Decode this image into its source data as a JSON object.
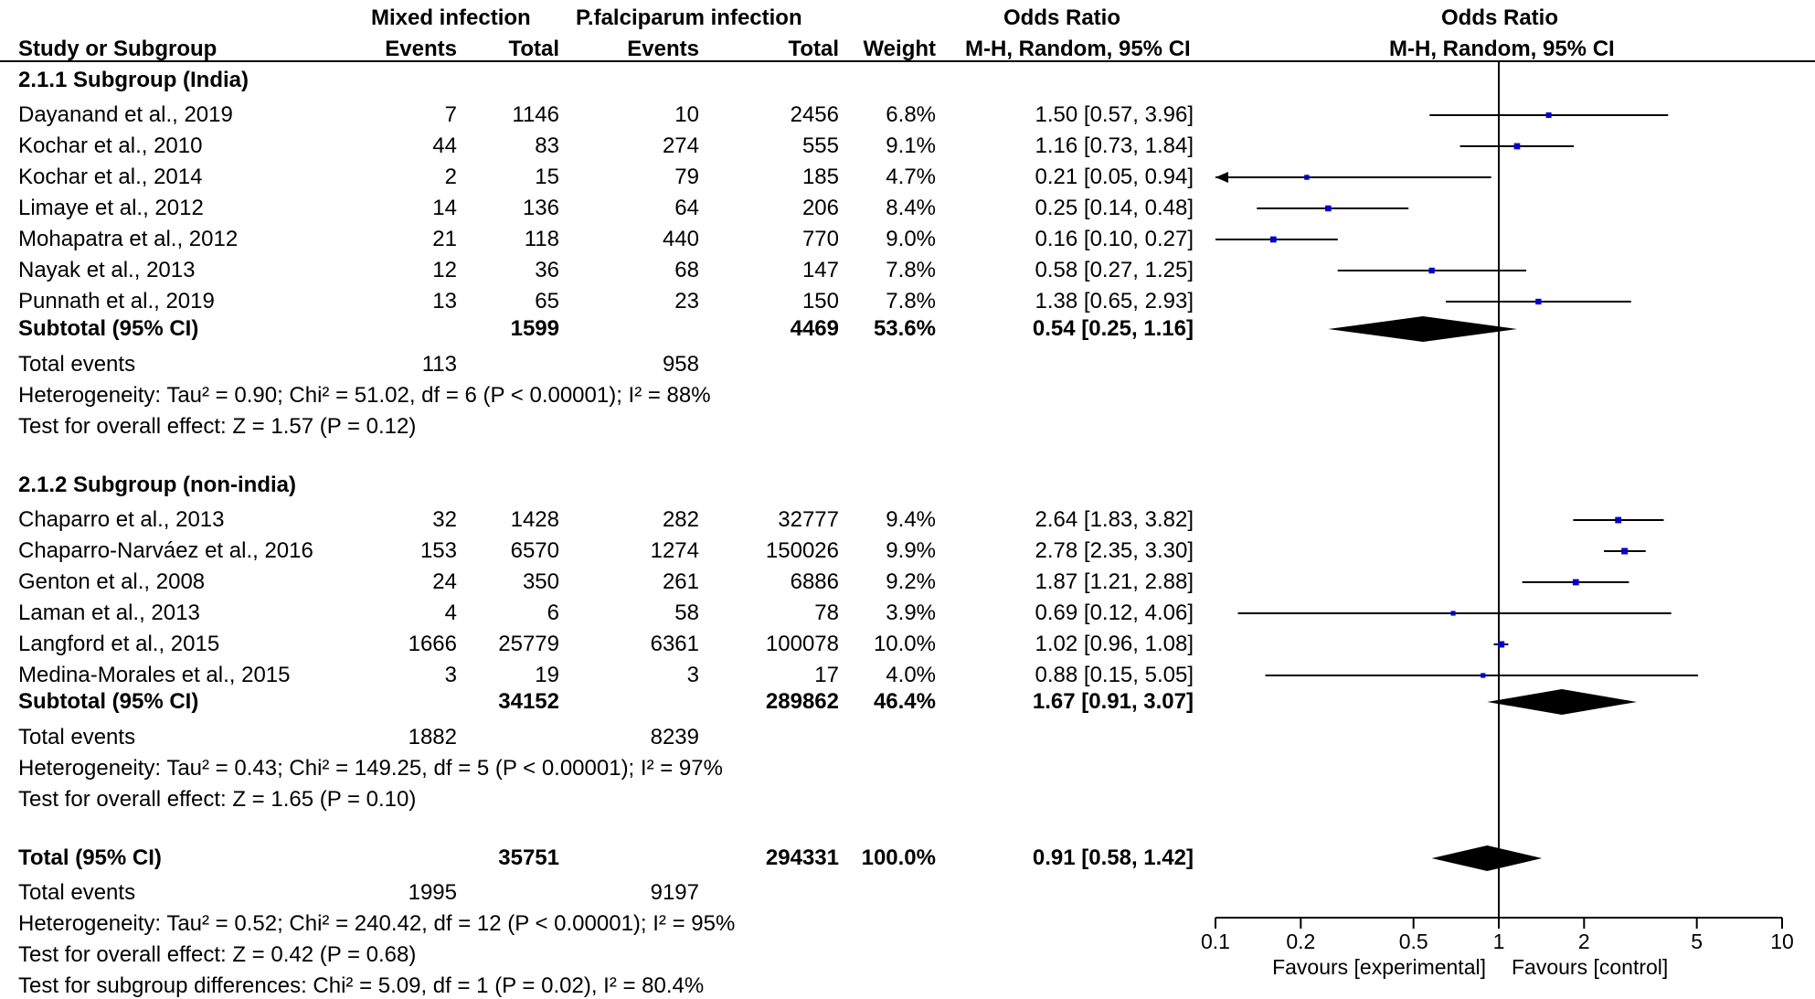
{
  "headers": {
    "group1": "Mixed infection",
    "group2": "P.falciparum infection",
    "odds_ratio": "Odds Ratio",
    "odds_ratio_plot": "Odds Ratio",
    "study": "Study or Subgroup",
    "events1": "Events",
    "total1": "Total",
    "events2": "Events",
    "total2": "Total",
    "weight": "Weight",
    "method": "M-H, Random, 95% CI",
    "method_plot": "M-H, Random, 95% CI"
  },
  "subgroups": [
    {
      "title": "2.1.1 Subgroup (India)",
      "studies": [
        {
          "name": "Dayanand et al., 2019",
          "e1": "7",
          "t1": "1146",
          "e2": "10",
          "t2": "2456",
          "weight": "6.8%",
          "ci": "1.50 [0.57, 3.96]"
        },
        {
          "name": "Kochar et al., 2010",
          "e1": "44",
          "t1": "83",
          "e2": "274",
          "t2": "555",
          "weight": "9.1%",
          "ci": "1.16 [0.73, 1.84]"
        },
        {
          "name": "Kochar et al., 2014",
          "e1": "2",
          "t1": "15",
          "e2": "79",
          "t2": "185",
          "weight": "4.7%",
          "ci": "0.21 [0.05, 0.94]"
        },
        {
          "name": "Limaye et al., 2012",
          "e1": "14",
          "t1": "136",
          "e2": "64",
          "t2": "206",
          "weight": "8.4%",
          "ci": "0.25 [0.14, 0.48]"
        },
        {
          "name": "Mohapatra et al., 2012",
          "e1": "21",
          "t1": "118",
          "e2": "440",
          "t2": "770",
          "weight": "9.0%",
          "ci": "0.16 [0.10, 0.27]"
        },
        {
          "name": "Nayak et al., 2013",
          "e1": "12",
          "t1": "36",
          "e2": "68",
          "t2": "147",
          "weight": "7.8%",
          "ci": "0.58 [0.27, 1.25]"
        },
        {
          "name": "Punnath et al., 2019",
          "e1": "13",
          "t1": "65",
          "e2": "23",
          "t2": "150",
          "weight": "7.8%",
          "ci": "1.38 [0.65, 2.93]"
        }
      ],
      "subtotal": {
        "label": "Subtotal (95% CI)",
        "t1": "1599",
        "t2": "4469",
        "weight": "53.6%",
        "ci": "0.54 [0.25, 1.16]"
      },
      "total_events": {
        "label": "Total events",
        "e1": "113",
        "e2": "958"
      },
      "heterogeneity": "Heterogeneity: Tau² = 0.90; Chi² = 51.02, df = 6 (P < 0.00001); I² = 88%",
      "overall": "Test for overall effect: Z = 1.57 (P = 0.12)"
    },
    {
      "title": "2.1.2 Subgroup (non-india)",
      "studies": [
        {
          "name": "Chaparro et al., 2013",
          "e1": "32",
          "t1": "1428",
          "e2": "282",
          "t2": "32777",
          "weight": "9.4%",
          "ci": "2.64 [1.83, 3.82]"
        },
        {
          "name": "Chaparro-Narváez et al., 2016",
          "e1": "153",
          "t1": "6570",
          "e2": "1274",
          "t2": "150026",
          "weight": "9.9%",
          "ci": "2.78 [2.35, 3.30]"
        },
        {
          "name": "Genton et al., 2008",
          "e1": "24",
          "t1": "350",
          "e2": "261",
          "t2": "6886",
          "weight": "9.2%",
          "ci": "1.87 [1.21, 2.88]"
        },
        {
          "name": "Laman et al., 2013",
          "e1": "4",
          "t1": "6",
          "e2": "58",
          "t2": "78",
          "weight": "3.9%",
          "ci": "0.69 [0.12, 4.06]"
        },
        {
          "name": "Langford et al., 2015",
          "e1": "1666",
          "t1": "25779",
          "e2": "6361",
          "t2": "100078",
          "weight": "10.0%",
          "ci": "1.02 [0.96, 1.08]"
        },
        {
          "name": "Medina-Morales et al., 2015",
          "e1": "3",
          "t1": "19",
          "e2": "3",
          "t2": "17",
          "weight": "4.0%",
          "ci": "0.88 [0.15, 5.05]"
        }
      ],
      "subtotal": {
        "label": "Subtotal (95% CI)",
        "t1": "34152",
        "t2": "289862",
        "weight": "46.4%",
        "ci": "1.67 [0.91, 3.07]"
      },
      "total_events": {
        "label": "Total events",
        "e1": "1882",
        "e2": "8239"
      },
      "heterogeneity": "Heterogeneity: Tau² = 0.43; Chi² = 149.25, df = 5 (P < 0.00001); I² = 97%",
      "overall": "Test for overall effect: Z = 1.65 (P = 0.10)"
    }
  ],
  "total": {
    "label": "Total (95% CI)",
    "t1": "35751",
    "t2": "294331",
    "weight": "100.0%",
    "ci": "0.91 [0.58, 1.42]"
  },
  "total_events": {
    "label": "Total events",
    "e1": "1995",
    "e2": "9197"
  },
  "total_heterogeneity": "Heterogeneity: Tau² = 0.52; Chi² = 240.42, df = 12 (P < 0.00001); I² = 95%",
  "total_overall": "Test for overall effect: Z = 0.42 (P = 0.68)",
  "subgroup_differences": "Test for subgroup differences: Chi² = 5.09, df = 1 (P = 0.02), I² = 80.4%",
  "colors": {
    "marker": "#0000cc",
    "diamond": "#000000",
    "line": "#000000"
  },
  "chart_data": {
    "type": "forest",
    "scale": "log",
    "xlim": [
      0.1,
      10
    ],
    "ticks": [
      "0.1",
      "0.2",
      "0.5",
      "1",
      "2",
      "5",
      "10"
    ],
    "favours_left": "Favours [experimental]",
    "favours_right": "Favours [control]",
    "studies": [
      {
        "name": "Dayanand et al., 2019",
        "or": 1.5,
        "lo": 0.57,
        "hi": 3.96
      },
      {
        "name": "Kochar et al., 2010",
        "or": 1.16,
        "lo": 0.73,
        "hi": 1.84
      },
      {
        "name": "Kochar et al., 2014",
        "or": 0.21,
        "lo": 0.05,
        "hi": 0.94
      },
      {
        "name": "Limaye et al., 2012",
        "or": 0.25,
        "lo": 0.14,
        "hi": 0.48
      },
      {
        "name": "Mohapatra et al., 2012",
        "or": 0.16,
        "lo": 0.1,
        "hi": 0.27
      },
      {
        "name": "Nayak et al., 2013",
        "or": 0.58,
        "lo": 0.27,
        "hi": 1.25
      },
      {
        "name": "Punnath et al., 2019",
        "or": 1.38,
        "lo": 0.65,
        "hi": 2.93
      },
      {
        "name": "Chaparro et al., 2013",
        "or": 2.64,
        "lo": 1.83,
        "hi": 3.82
      },
      {
        "name": "Chaparro-Narváez et al., 2016",
        "or": 2.78,
        "lo": 2.35,
        "hi": 3.3
      },
      {
        "name": "Genton et al., 2008",
        "or": 1.87,
        "lo": 1.21,
        "hi": 2.88
      },
      {
        "name": "Laman et al., 2013",
        "or": 0.69,
        "lo": 0.12,
        "hi": 4.06
      },
      {
        "name": "Langford et al., 2015",
        "or": 1.02,
        "lo": 0.96,
        "hi": 1.08
      },
      {
        "name": "Medina-Morales et al., 2015",
        "or": 0.88,
        "lo": 0.15,
        "hi": 5.05
      }
    ],
    "pooled": [
      {
        "name": "Subtotal India",
        "or": 0.54,
        "lo": 0.25,
        "hi": 1.16
      },
      {
        "name": "Subtotal non-India",
        "or": 1.67,
        "lo": 0.91,
        "hi": 3.07
      },
      {
        "name": "Total",
        "or": 0.91,
        "lo": 0.58,
        "hi": 1.42
      }
    ]
  }
}
